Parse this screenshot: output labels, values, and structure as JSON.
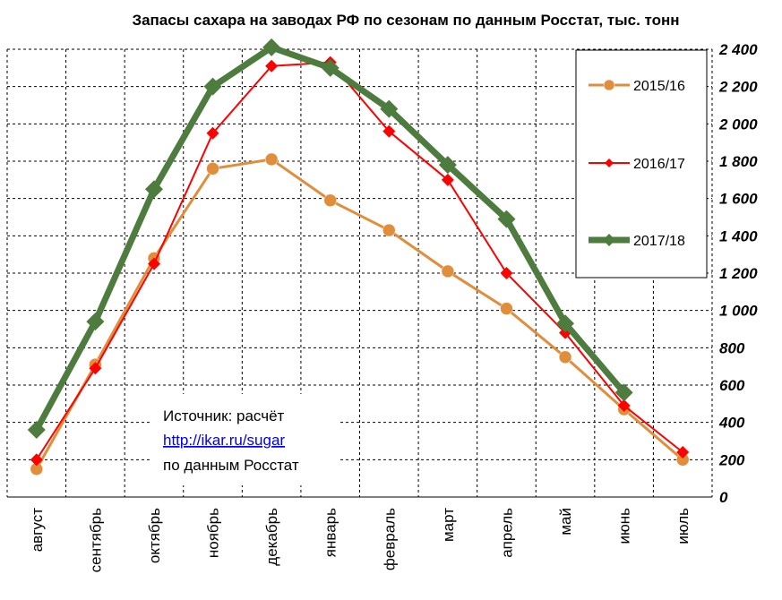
{
  "chart_data": {
    "type": "line",
    "title": "Запасы сахара на заводах РФ по сезонам по данным Росстат, тыс. тонн",
    "categories": [
      "август",
      "сентябрь",
      "октябрь",
      "ноябрь",
      "декабрь",
      "январь",
      "февраль",
      "март",
      "апрель",
      "май",
      "июнь",
      "июль"
    ],
    "ylim": [
      0,
      2400
    ],
    "yticks": [
      0,
      200,
      400,
      600,
      800,
      1000,
      1200,
      1400,
      1600,
      1800,
      2000,
      2200,
      2400
    ],
    "ytick_labels": [
      "0",
      "200",
      "400",
      "600",
      "800",
      "1 000",
      "1 200",
      "1 400",
      "1 600",
      "1 800",
      "2 000",
      "2 200",
      "2 400"
    ],
    "y_axis_side": "right",
    "grid": true,
    "legend_position": "top-right",
    "series": [
      {
        "name": "2015/16",
        "color": "#E08E3C",
        "marker": "circle",
        "values": [
          150,
          710,
          1280,
          1760,
          1810,
          1590,
          1430,
          1210,
          1010,
          750,
          470,
          200
        ]
      },
      {
        "name": "2016/17",
        "color": "#FF0000",
        "marker": "diamond",
        "values": [
          200,
          690,
          1250,
          1950,
          2310,
          2330,
          1960,
          1700,
          1200,
          880,
          490,
          240
        ]
      },
      {
        "name": "2017/18",
        "color": "#4E7C3E",
        "marker": "diamond",
        "values": [
          360,
          940,
          1650,
          2200,
          2410,
          2300,
          2080,
          1780,
          1490,
          930,
          560,
          null
        ]
      }
    ],
    "annotation": {
      "line1": "Источник: расчёт",
      "link": "http://ikar.ru/sugar",
      "line3": "по данным Росстат"
    }
  }
}
